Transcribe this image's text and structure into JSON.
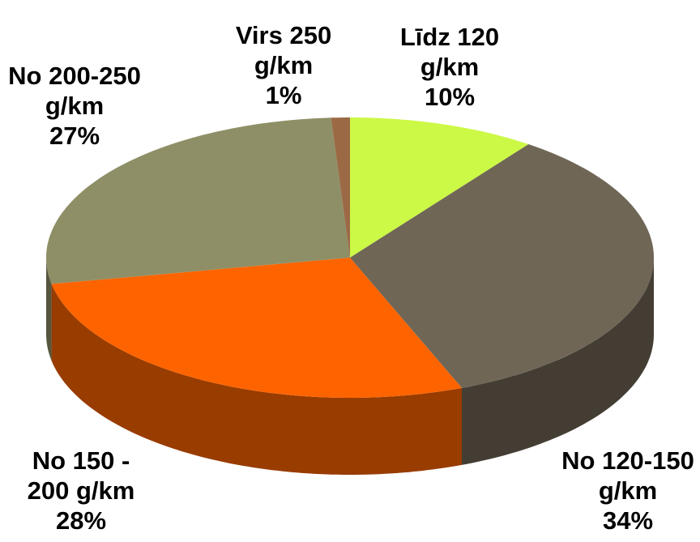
{
  "chart_data": {
    "type": "pie",
    "categories": [
      "Līdz 120 g/km",
      "No 120-150 g/km",
      "No 150 - 200 g/km",
      "No 200-250 g/km",
      "Virs 250 g/km"
    ],
    "values": [
      10,
      34,
      28,
      27,
      1
    ],
    "value_labels": [
      "10%",
      "34%",
      "28%",
      "27%",
      "1%"
    ],
    "colors": [
      "#ccf846",
      "#6f6656",
      "#fd6400",
      "#8f8f67",
      "#9b6a45"
    ]
  }
}
